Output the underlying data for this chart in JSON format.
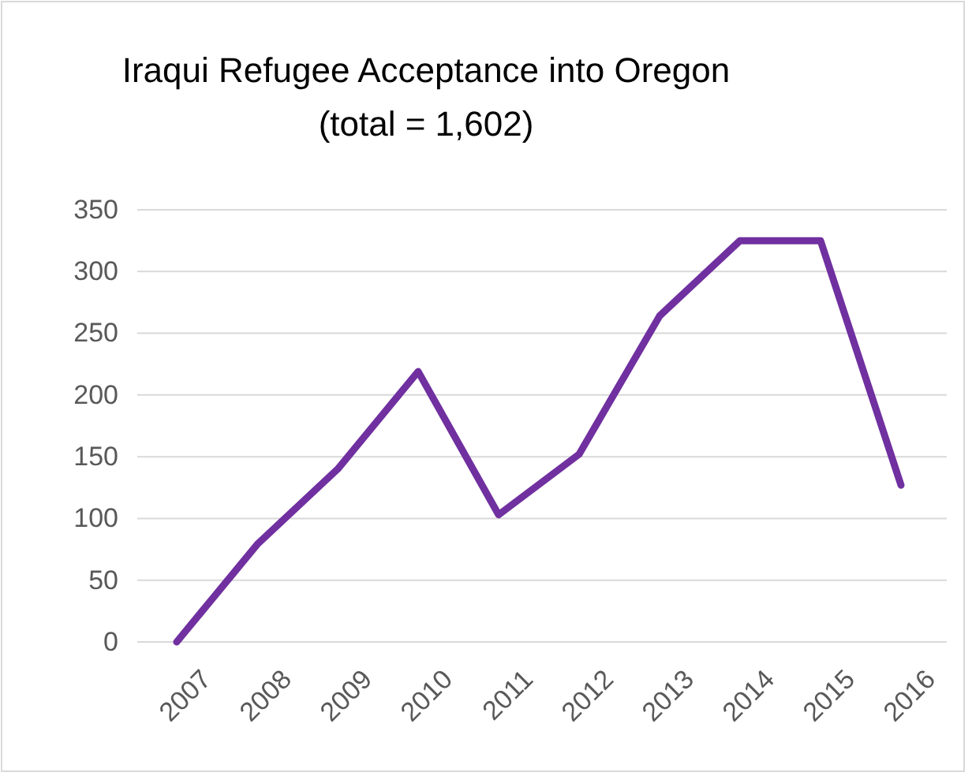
{
  "chart_data": {
    "type": "line",
    "title": "Iraqui Refugee Acceptance into Oregon",
    "subtitle": "(total = 1,602)",
    "categories": [
      "2007",
      "2008",
      "2009",
      "2010",
      "2011",
      "2012",
      "2013",
      "2014",
      "2015",
      "2016"
    ],
    "series": [
      {
        "color": "#7030a0",
        "values": [
          0,
          79,
          140,
          219,
          103,
          152,
          264,
          325,
          325,
          127
        ]
      }
    ],
    "ylim": [
      0,
      350
    ],
    "yticks": [
      0,
      50,
      100,
      150,
      200,
      250,
      300,
      350
    ],
    "grid": "y",
    "marker": "none",
    "line_style": "solid",
    "legend": false
  }
}
